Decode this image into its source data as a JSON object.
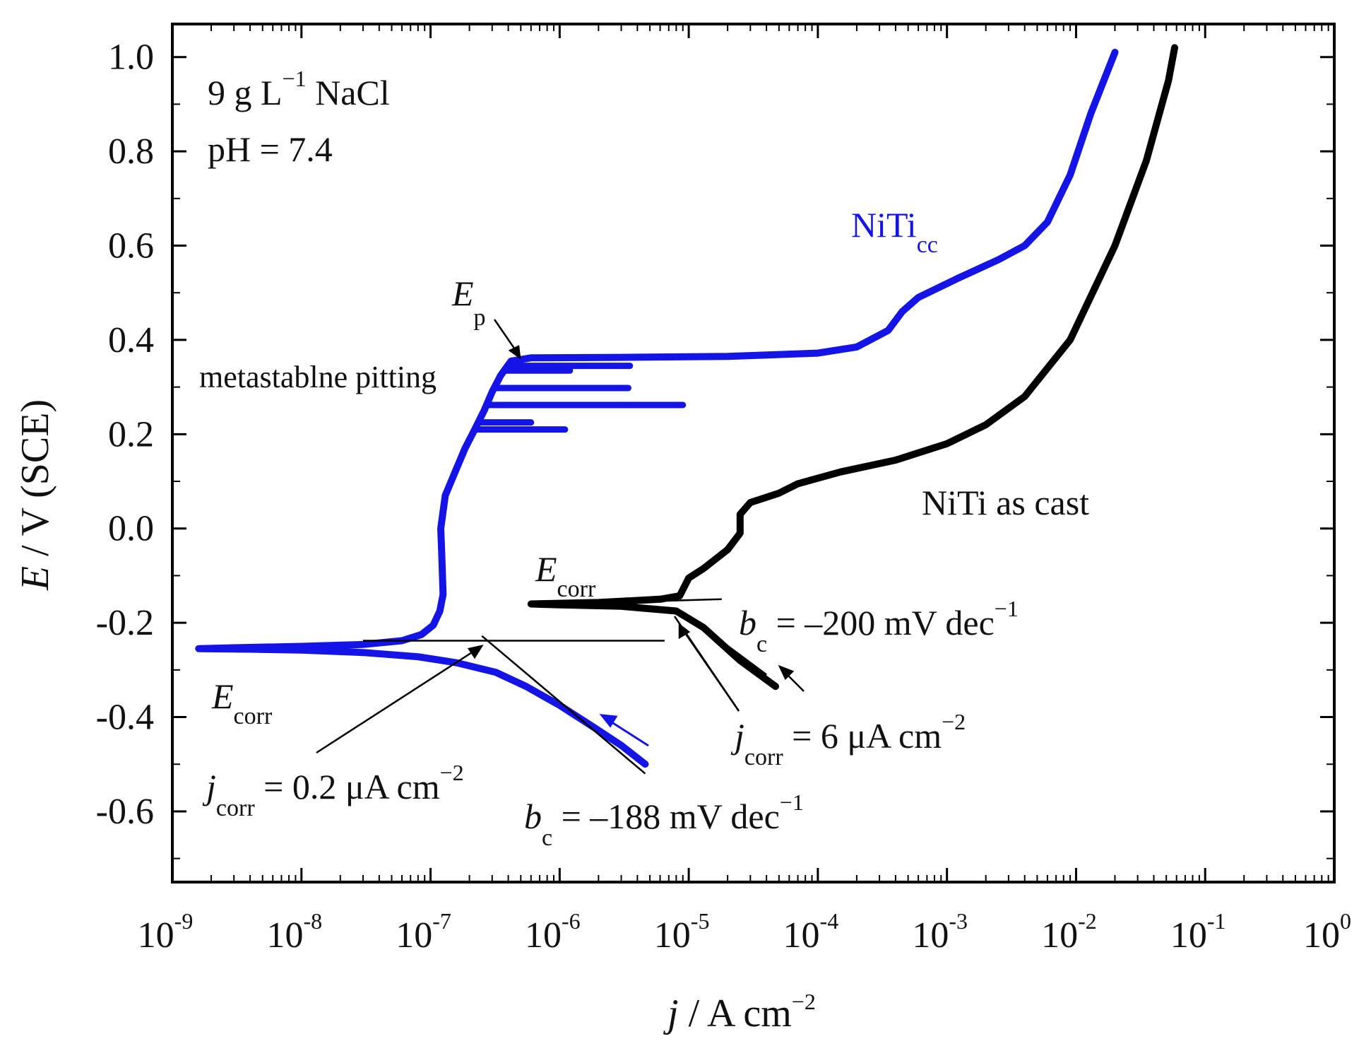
{
  "chart_data": {
    "type": "line",
    "xscale": "log",
    "xlim_exponent": [
      -9,
      0
    ],
    "ylim": [
      -0.75,
      1.07
    ],
    "xlabel": {
      "var": "j",
      "unit": " / A cm",
      "sup": "−2"
    },
    "ylabel": {
      "var": "E",
      "unit": " / V (SCE)"
    },
    "x_ticks": [
      {
        "base": "10",
        "exp": "-9"
      },
      {
        "base": "10",
        "exp": "-8"
      },
      {
        "base": "10",
        "exp": "-7"
      },
      {
        "base": "10",
        "exp": "-6"
      },
      {
        "base": "10",
        "exp": "-5"
      },
      {
        "base": "10",
        "exp": "-4"
      },
      {
        "base": "10",
        "exp": "-3"
      },
      {
        "base": "10",
        "exp": "-2"
      },
      {
        "base": "10",
        "exp": "-1"
      },
      {
        "base": "10",
        "exp": "0"
      }
    ],
    "y_ticks": [
      {
        "v": 1.0,
        "label": "1.0"
      },
      {
        "v": 0.8,
        "label": "0.8"
      },
      {
        "v": 0.6,
        "label": "0.6"
      },
      {
        "v": 0.4,
        "label": "0.4"
      },
      {
        "v": 0.2,
        "label": "0.2"
      },
      {
        "v": 0.0,
        "label": "0.0"
      },
      {
        "v": -0.2,
        "label": "-0.2"
      },
      {
        "v": -0.4,
        "label": "-0.4"
      },
      {
        "v": -0.6,
        "label": "-0.6"
      }
    ],
    "series": [
      {
        "name": "NiTi_cc",
        "color": "#1414e6",
        "points": [
          [
            4.6e-06,
            -0.5
          ],
          [
            3e-06,
            -0.46
          ],
          [
            1.8e-06,
            -0.42
          ],
          [
            1e-06,
            -0.375
          ],
          [
            5.5e-07,
            -0.335
          ],
          [
            3.2e-07,
            -0.305
          ],
          [
            1.6e-07,
            -0.285
          ],
          [
            8e-08,
            -0.272
          ],
          [
            3e-08,
            -0.263
          ],
          [
            1e-08,
            -0.258
          ],
          [
            4e-09,
            -0.256
          ],
          [
            1.6e-09,
            -0.255
          ],
          [
            3e-09,
            -0.253
          ],
          [
            1e-08,
            -0.25
          ],
          [
            3e-08,
            -0.246
          ],
          [
            6e-08,
            -0.238
          ],
          [
            8.5e-08,
            -0.225
          ],
          [
            1.05e-07,
            -0.205
          ],
          [
            1.18e-07,
            -0.175
          ],
          [
            1.25e-07,
            -0.14
          ],
          [
            1.22e-07,
            -0.05
          ],
          [
            1.2e-07,
            0.0
          ],
          [
            1.3e-07,
            0.07
          ],
          [
            1.55e-07,
            0.12
          ],
          [
            1.85e-07,
            0.17
          ],
          [
            2.2e-07,
            0.21
          ],
          [
            2.6e-07,
            0.25
          ],
          [
            3e-07,
            0.29
          ],
          [
            3.5e-07,
            0.325
          ],
          [
            4.2e-07,
            0.355
          ],
          [
            6e-07,
            0.362
          ],
          [
            3e-06,
            0.363
          ],
          [
            2e-05,
            0.365
          ],
          [
            0.0001,
            0.372
          ],
          [
            0.0002,
            0.385
          ],
          [
            0.00035,
            0.42
          ],
          [
            0.00045,
            0.46
          ],
          [
            0.0006,
            0.49
          ],
          [
            0.0012,
            0.53
          ],
          [
            0.0025,
            0.57
          ],
          [
            0.004,
            0.6
          ],
          [
            0.006,
            0.65
          ],
          [
            0.009,
            0.75
          ],
          [
            0.013,
            0.88
          ],
          [
            0.02,
            1.01
          ]
        ]
      },
      {
        "name": "NiTi as cast",
        "color": "#000000",
        "points": [
          [
            4.7e-05,
            -0.335
          ],
          [
            2.5e-05,
            -0.28
          ],
          [
            1.3e-05,
            -0.21
          ],
          [
            8e-06,
            -0.175
          ],
          [
            3e-06,
            -0.165
          ],
          [
            1e-06,
            -0.162
          ],
          [
            6e-07,
            -0.16
          ],
          [
            2e-06,
            -0.157
          ],
          [
            6e-06,
            -0.15
          ],
          [
            8.5e-06,
            -0.143
          ],
          [
            1e-05,
            -0.105
          ],
          [
            1.3e-05,
            -0.085
          ],
          [
            2e-05,
            -0.045
          ],
          [
            2.5e-05,
            -0.01
          ],
          [
            2.5e-05,
            0.03
          ],
          [
            3e-05,
            0.055
          ],
          [
            5e-05,
            0.075
          ],
          [
            7e-05,
            0.095
          ],
          [
            0.00015,
            0.12
          ],
          [
            0.0004,
            0.145
          ],
          [
            0.001,
            0.18
          ],
          [
            0.002,
            0.22
          ],
          [
            0.004,
            0.28
          ],
          [
            0.009,
            0.4
          ],
          [
            0.02,
            0.6
          ],
          [
            0.035,
            0.78
          ],
          [
            0.052,
            0.95
          ],
          [
            0.058,
            1.02
          ]
        ]
      }
    ],
    "tafel_lines": [
      {
        "color": "#000000",
        "from": [
          3e-08,
          -0.238
        ],
        "to": [
          6.5e-06,
          -0.238
        ]
      },
      {
        "color": "#000000",
        "from": [
          2.5e-07,
          -0.228
        ],
        "to": [
          4.6e-06,
          -0.52
        ]
      },
      {
        "color": "#000000",
        "from": [
          1e-06,
          -0.16
        ],
        "to": [
          1.8e-05,
          -0.15
        ]
      },
      {
        "color": "#000000",
        "from": [
          9e-06,
          -0.178
        ],
        "to": [
          4e-05,
          -0.31
        ]
      }
    ],
    "pitting_spikes": [
      {
        "e": 0.21,
        "j_end": 1.1e-06
      },
      {
        "e": 0.225,
        "j_end": 6e-07
      },
      {
        "e": 0.262,
        "j_end": 9e-06
      },
      {
        "e": 0.298,
        "j_end": 3.4e-06
      },
      {
        "e": 0.335,
        "j_end": 1.2e-06
      },
      {
        "e": 0.345,
        "j_end": 3.5e-06
      }
    ],
    "annotations": {
      "condition1": {
        "prefix": "9 g L",
        "sup": "−1",
        "suffix": " NaCl"
      },
      "condition2": "pH = 7.4",
      "niti_cc": {
        "main": "NiTi",
        "sub": "cc"
      },
      "niti_as_cast": "NiTi as cast",
      "ep": {
        "main": "E",
        "sub": "p"
      },
      "metastable": "metastablne pitting",
      "ecorr_cc": {
        "main": "E",
        "sub": "corr"
      },
      "ecorr_cast": {
        "main": "E",
        "sub": "corr"
      },
      "bc_cast": {
        "main": "b",
        "sub": "c",
        "rest": " = –200 mV dec",
        "sup": "−1"
      },
      "bc_cc": {
        "main": "b",
        "sub": "c",
        "rest": " = –188 mV dec",
        "sup": "−1"
      },
      "jcorr_cast": {
        "main": "j",
        "sub": "corr",
        "rest": " = 6 μA cm",
        "sup": "−2"
      },
      "jcorr_cc": {
        "main": "j",
        "sub": "corr",
        "rest": " = 0.2 μA cm",
        "sup": "−2"
      }
    }
  }
}
